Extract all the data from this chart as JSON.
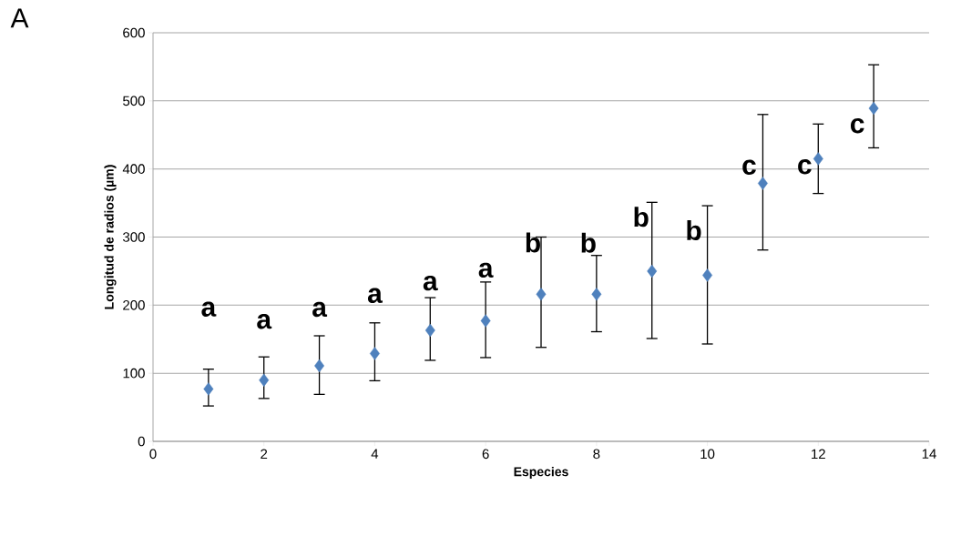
{
  "chart_data": {
    "type": "scatter",
    "xlabel": "Especies",
    "ylabel": "Longitud de radios  (µm)",
    "x": [
      1,
      2,
      3,
      4,
      5,
      6,
      7,
      8,
      9,
      10,
      11,
      12,
      13
    ],
    "values": [
      77,
      90,
      111,
      129,
      163,
      177,
      216,
      216,
      250,
      244,
      379,
      415,
      489
    ],
    "errors": [
      [
        52,
        106
      ],
      [
        63,
        124
      ],
      [
        69,
        155
      ],
      [
        89,
        174
      ],
      [
        119,
        211
      ],
      [
        123,
        234
      ],
      [
        138,
        300
      ],
      [
        161,
        273
      ],
      [
        151,
        351
      ],
      [
        143,
        346
      ],
      [
        281,
        480
      ],
      [
        364,
        466
      ],
      [
        431,
        553
      ]
    ],
    "color": "#4f81bd",
    "marker": "diamond",
    "grid": "y",
    "xlim": [
      0,
      14
    ],
    "xticks": [
      0,
      2,
      4,
      6,
      8,
      10,
      12,
      14
    ],
    "ylim": [
      0,
      600
    ],
    "yticks": [
      0,
      100,
      200,
      300,
      400,
      500,
      600
    ],
    "annotations": [
      "A",
      "a",
      "a",
      "a",
      "a",
      "a",
      "a",
      "b",
      "b",
      "b",
      "b",
      "c",
      "c",
      "c"
    ]
  }
}
